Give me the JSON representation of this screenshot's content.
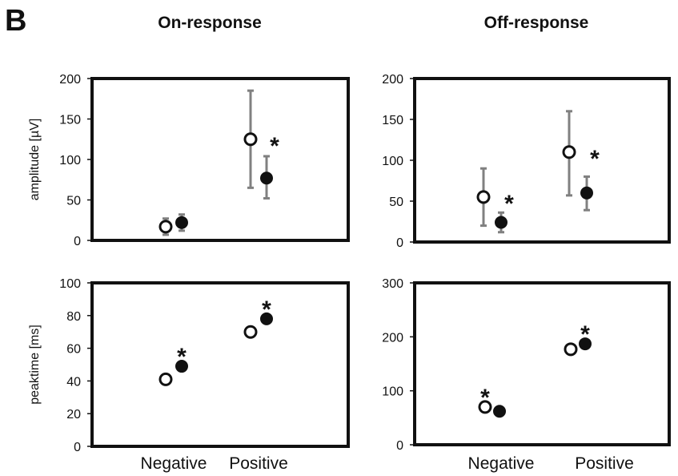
{
  "figure": {
    "panel_letter": "B",
    "column_titles": [
      "On-response",
      "Off-response"
    ],
    "categories": [
      "Negative",
      "Positive"
    ],
    "errorbar_color": "#808080"
  },
  "chart_data": [
    {
      "type": "scatter",
      "title": "On-response",
      "ylabel": "amplitude [µV]",
      "ylim": [
        0,
        200
      ],
      "yticks": [
        0,
        50,
        100,
        150,
        200
      ],
      "categories": [
        "Negative",
        "Positive"
      ],
      "series": [
        {
          "marker": "open-circle",
          "values": [
            17,
            125
          ],
          "error": [
            [
              7,
              27
            ],
            [
              65,
              185
            ]
          ]
        },
        {
          "marker": "filled-circle",
          "values": [
            22,
            77
          ],
          "error": [
            [
              12,
              32
            ],
            [
              52,
              104
            ]
          ]
        }
      ],
      "annotations": [
        {
          "text": "*",
          "category": "Positive"
        }
      ]
    },
    {
      "type": "scatter",
      "title": "Off-response",
      "ylabel": "",
      "ylim": [
        0,
        200
      ],
      "yticks": [
        0,
        50,
        100,
        150,
        200
      ],
      "categories": [
        "Negative",
        "Positive"
      ],
      "series": [
        {
          "marker": "open-circle",
          "values": [
            55,
            110
          ],
          "error": [
            [
              20,
              90
            ],
            [
              57,
              160
            ]
          ]
        },
        {
          "marker": "filled-circle",
          "values": [
            24,
            60
          ],
          "error": [
            [
              12,
              36
            ],
            [
              39,
              80
            ]
          ]
        }
      ],
      "annotations": [
        {
          "text": "*",
          "category": "Negative"
        },
        {
          "text": "*",
          "category": "Positive"
        }
      ]
    },
    {
      "type": "scatter",
      "title": "",
      "ylabel": "peaktime [ms]",
      "ylim": [
        0,
        100
      ],
      "yticks": [
        0,
        20,
        40,
        60,
        80,
        100
      ],
      "categories": [
        "Negative",
        "Positive"
      ],
      "series": [
        {
          "marker": "open-circle",
          "values": [
            41,
            70
          ]
        },
        {
          "marker": "filled-circle",
          "values": [
            49,
            78
          ]
        }
      ],
      "annotations": [
        {
          "text": "*",
          "category": "Negative"
        },
        {
          "text": "*",
          "category": "Positive"
        }
      ]
    },
    {
      "type": "scatter",
      "title": "",
      "ylabel": "",
      "ylim": [
        0,
        300
      ],
      "yticks": [
        0,
        100,
        200,
        300
      ],
      "categories": [
        "Negative",
        "Positive"
      ],
      "series": [
        {
          "marker": "open-circle",
          "values": [
            70,
            177
          ]
        },
        {
          "marker": "filled-circle",
          "values": [
            62,
            187
          ]
        }
      ],
      "annotations": [
        {
          "text": "*",
          "category": "Negative"
        },
        {
          "text": "*",
          "category": "Positive"
        }
      ]
    }
  ]
}
